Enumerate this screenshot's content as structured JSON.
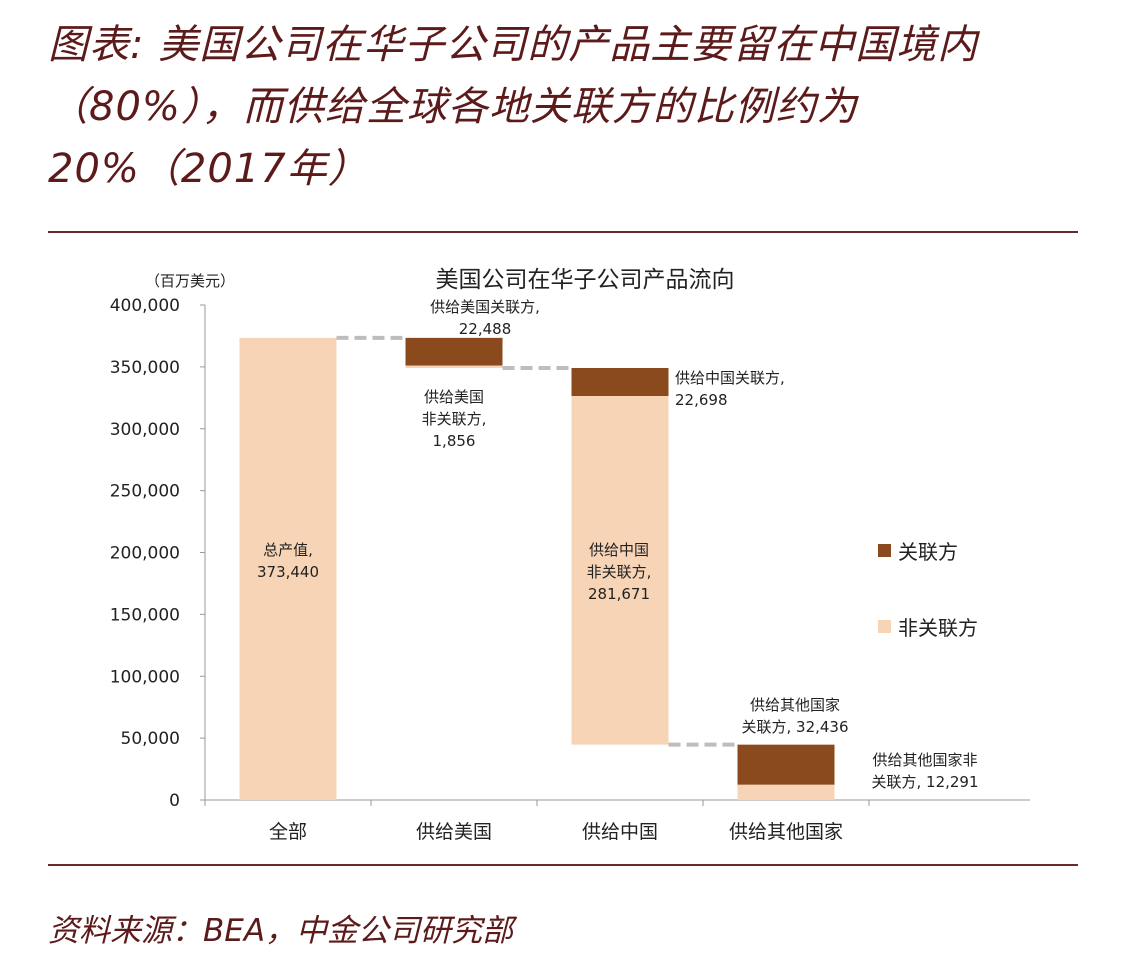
{
  "header": {
    "title": "图表: 美国公司在华子公司的产品主要留在中国境内（80%），而供给全球各地关联方的比例约为20%（2017年）"
  },
  "footer": {
    "source": "资料来源：BEA，中金公司研究部"
  },
  "chart_data": {
    "type": "waterfall-bar",
    "title": "美国公司在华子公司产品流向",
    "ylabel": "（百万美元）",
    "ylim": [
      0,
      400000
    ],
    "yticks": [
      0,
      50000,
      100000,
      150000,
      200000,
      250000,
      300000,
      350000,
      400000
    ],
    "ytick_labels": [
      "0",
      "50,000",
      "100,000",
      "150,000",
      "200,000",
      "250,000",
      "300,000",
      "350,000",
      "400,000"
    ],
    "categories": [
      "全部",
      "供给美国",
      "供给中国",
      "供给其他国家"
    ],
    "legend": {
      "placement": "right",
      "items": [
        {
          "name": "关联方",
          "color": "#8b4a1e"
        },
        {
          "name": "非关联方",
          "color": "#f7d4b6"
        }
      ]
    },
    "colors": {
      "affiliate": "#8b4a1e",
      "non_affiliate": "#f7d4b6",
      "connector": "#bdbdbd"
    },
    "segments": [
      {
        "category": "全部",
        "type": "non_affiliate",
        "bottom": 0,
        "top": 373440,
        "label_lines": [
          "总产值,",
          "373,440"
        ]
      },
      {
        "category": "供给美国",
        "type": "affiliate",
        "bottom": 350952,
        "top": 373440,
        "label_lines": [
          "供给美国关联方,",
          "22,488"
        ]
      },
      {
        "category": "供给美国",
        "type": "non_affiliate",
        "bottom": 349096,
        "top": 350952,
        "label_lines": [
          "供给美国",
          "非关联方,",
          "1,856"
        ]
      },
      {
        "category": "供给中国",
        "type": "affiliate",
        "bottom": 326398,
        "top": 349096,
        "label_lines": [
          "供给中国关联方,",
          "22,698"
        ]
      },
      {
        "category": "供给中国",
        "type": "non_affiliate",
        "bottom": 44727,
        "top": 326398,
        "label_lines": [
          "供给中国",
          "非关联方,",
          "281,671"
        ]
      },
      {
        "category": "供给其他国家",
        "type": "affiliate",
        "bottom": 12291,
        "top": 44727,
        "label_lines": [
          "供给其他国家",
          "关联方, 32,436"
        ]
      },
      {
        "category": "供给其他国家",
        "type": "non_affiliate",
        "bottom": 0,
        "top": 12291,
        "label_lines": [
          "供给其他国家非",
          "关联方, 12,291"
        ]
      }
    ]
  }
}
